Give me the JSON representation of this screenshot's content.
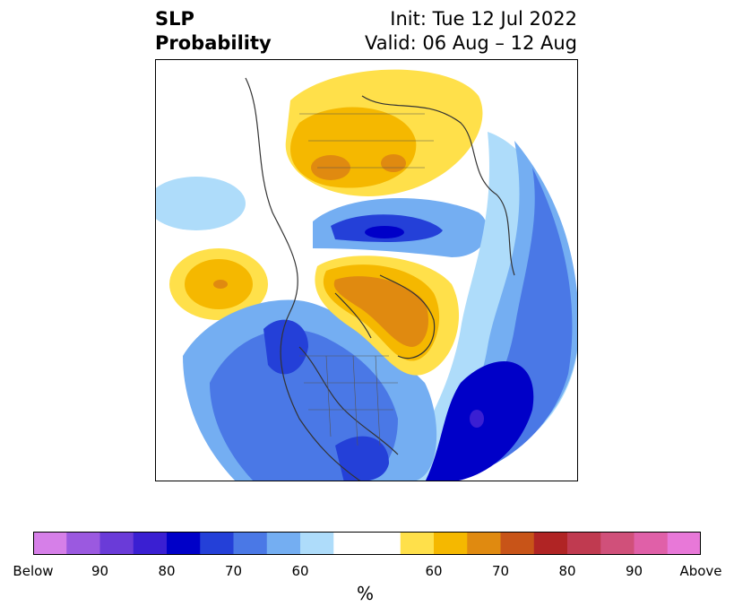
{
  "header": {
    "title_line1": "SLP",
    "title_line2": "Probability",
    "init": "Init: Tue 12 Jul 2022",
    "valid": "Valid: 06 Aug – 12 Aug"
  },
  "colorbar": {
    "colors": [
      "#d67fe8",
      "#9b59e0",
      "#6a3bd8",
      "#3a1fd2",
      "#0000c8",
      "#2440d8",
      "#4a78e6",
      "#74aef2",
      "#aedcfa",
      "#ffffff",
      "#ffffff",
      "#ffe04a",
      "#f5b800",
      "#e08a10",
      "#c85418",
      "#b02424",
      "#c03a50",
      "#d0507a",
      "#e060a8",
      "#e878d8"
    ],
    "tick_labels": [
      "Below",
      "90",
      "80",
      "70",
      "60",
      "60",
      "70",
      "80",
      "90",
      "Above"
    ],
    "unit": "%"
  },
  "map": {
    "projection": "polar stereographic (Northern Hemisphere)",
    "below_color": "#2440d8",
    "above_color": "#f5b800"
  }
}
